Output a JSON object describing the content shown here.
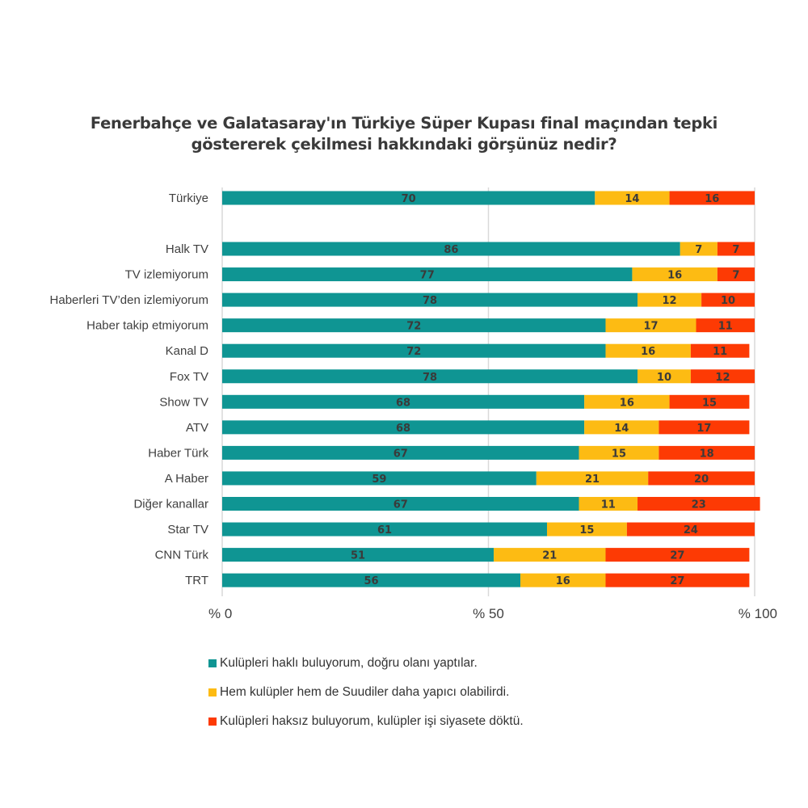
{
  "chart_data": {
    "type": "bar",
    "orientation": "horizontal",
    "stacked": true,
    "title": "Fenerbahçe ve Galatasaray'ın Türkiye Süper Kupası final maçından tepki göstererek çekilmesi hakkındaki görşünüz nedir?",
    "title_lines": [
      "Fenerbahçe ve Galatasaray'ın Türkiye Süper Kupası final maçından tepki",
      "göstererek çekilmesi hakkındaki görşünüz nedir?"
    ],
    "xlabel": "",
    "ylabel": "",
    "xlim": [
      0,
      100
    ],
    "x_ticks": [
      0,
      50,
      100
    ],
    "x_tick_labels": [
      "% 0",
      "% 50",
      "% 100"
    ],
    "grid": true,
    "legend_position": "bottom",
    "categories": [
      "Türkiye",
      "Halk TV",
      "TV izlemiyorum",
      "Haberleri TV’den izlemiyorum",
      "Haber takip etmiyorum",
      "Kanal D",
      "Fox TV",
      "Show TV",
      "ATV",
      "Haber Türk",
      "A Haber",
      "Diğer kanallar",
      "Star TV",
      "CNN Türk",
      "TRT"
    ],
    "series": [
      {
        "name": "Kulüpleri haklı buluyorum, doğru olanı yaptılar.",
        "color": "#0f9593",
        "values": [
          70,
          86,
          77,
          78,
          72,
          72,
          78,
          68,
          68,
          67,
          59,
          67,
          61,
          51,
          56
        ]
      },
      {
        "name": "Hem kulüpler hem de Suudiler daha yapıcı olabilirdi.",
        "color": "#fdbb13",
        "values": [
          14,
          7,
          16,
          12,
          17,
          16,
          10,
          16,
          14,
          15,
          21,
          11,
          15,
          21,
          16
        ]
      },
      {
        "name": "Kulüpleri haksız buluyorum, kulüpler işi siyasete döktü.",
        "color": "#fd3a04",
        "values": [
          16,
          7,
          7,
          10,
          11,
          11,
          12,
          15,
          17,
          18,
          20,
          23,
          24,
          27,
          27
        ]
      }
    ]
  }
}
